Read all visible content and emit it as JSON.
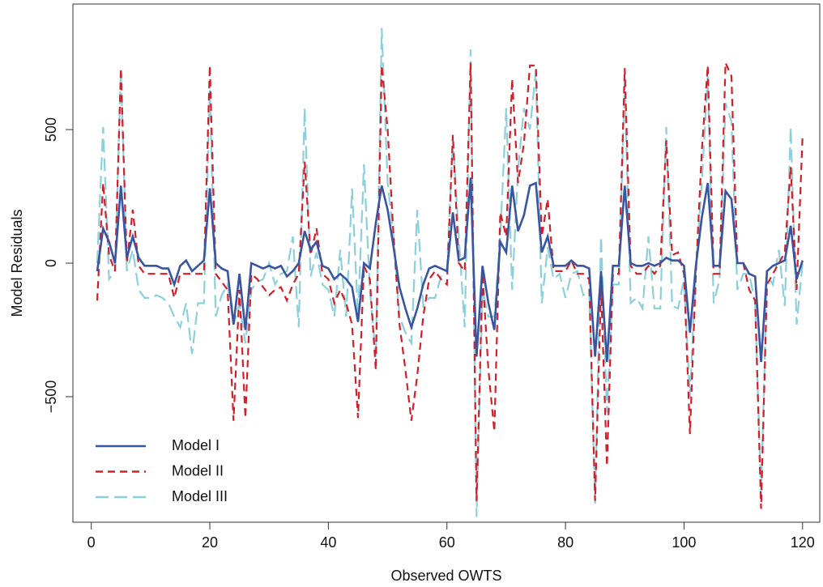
{
  "chart_data": {
    "type": "line",
    "xlabel": "Observed OWTS",
    "ylabel": "Model Residuals",
    "x": [
      1,
      2,
      3,
      4,
      5,
      6,
      7,
      8,
      9,
      10,
      11,
      12,
      13,
      14,
      15,
      16,
      17,
      18,
      19,
      20,
      21,
      22,
      23,
      24,
      25,
      26,
      27,
      28,
      29,
      30,
      31,
      32,
      33,
      34,
      35,
      36,
      37,
      38,
      39,
      40,
      41,
      42,
      43,
      44,
      45,
      46,
      47,
      48,
      49,
      50,
      51,
      52,
      53,
      54,
      55,
      56,
      57,
      58,
      59,
      60,
      61,
      62,
      63,
      64,
      65,
      66,
      67,
      68,
      69,
      70,
      71,
      72,
      73,
      74,
      75,
      76,
      77,
      78,
      79,
      80,
      81,
      82,
      83,
      84,
      85,
      86,
      87,
      88,
      89,
      90,
      91,
      92,
      93,
      94,
      95,
      96,
      97,
      98,
      99,
      100,
      101,
      102,
      103,
      104,
      105,
      106,
      107,
      108,
      109,
      110,
      111,
      112,
      113,
      114,
      115,
      116,
      117,
      118,
      119,
      120
    ],
    "series": [
      {
        "name": "Model I",
        "color": "#3a55a0",
        "dash": "solid",
        "values": [
          -30,
          130,
          80,
          0,
          290,
          20,
          100,
          20,
          -10,
          -10,
          -10,
          -20,
          -20,
          -80,
          -10,
          10,
          -30,
          -10,
          10,
          280,
          0,
          -20,
          -30,
          -230,
          -40,
          -250,
          0,
          -10,
          -20,
          -10,
          -20,
          -10,
          -50,
          -30,
          0,
          120,
          50,
          80,
          -10,
          -20,
          -60,
          -40,
          -60,
          -90,
          -220,
          0,
          -20,
          150,
          290,
          200,
          60,
          -90,
          -170,
          -240,
          -170,
          -80,
          -20,
          -10,
          -20,
          -30,
          190,
          10,
          20,
          320,
          -350,
          -10,
          -150,
          -250,
          80,
          40,
          290,
          120,
          180,
          290,
          300,
          40,
          100,
          -10,
          -10,
          -10,
          10,
          -10,
          -10,
          -20,
          -350,
          -30,
          -370,
          -10,
          -10,
          290,
          0,
          -10,
          -10,
          0,
          -10,
          0,
          20,
          10,
          10,
          -10,
          -260,
          -10,
          170,
          300,
          -10,
          -10,
          270,
          240,
          0,
          0,
          -40,
          -50,
          -370,
          -30,
          -10,
          0,
          10,
          140,
          -60,
          10
        ]
      },
      {
        "name": "Model II",
        "color": "#d0202a",
        "dash": "dashed",
        "values": [
          -140,
          300,
          30,
          -30,
          730,
          0,
          200,
          -10,
          -40,
          -40,
          -40,
          -40,
          -40,
          -130,
          -40,
          -40,
          -40,
          -40,
          -40,
          740,
          -40,
          -70,
          -100,
          -590,
          -100,
          -580,
          -40,
          -60,
          -90,
          -120,
          -100,
          -90,
          -140,
          -80,
          -40,
          380,
          30,
          130,
          -40,
          -60,
          -150,
          -100,
          -150,
          -230,
          -580,
          -10,
          -60,
          -400,
          740,
          500,
          100,
          -230,
          -400,
          -590,
          -420,
          -200,
          -60,
          -30,
          -60,
          -80,
          480,
          0,
          -30,
          750,
          -890,
          -40,
          -400,
          -630,
          190,
          100,
          690,
          300,
          450,
          740,
          740,
          100,
          240,
          -30,
          -30,
          -30,
          10,
          -40,
          -40,
          -60,
          -890,
          -90,
          -760,
          -40,
          -40,
          730,
          -10,
          -40,
          -40,
          -10,
          -40,
          -10,
          460,
          30,
          40,
          -40,
          -640,
          -40,
          420,
          740,
          -40,
          -40,
          750,
          700,
          0,
          0,
          -100,
          -140,
          -920,
          -80,
          -40,
          0,
          40,
          360,
          -100,
          480
        ]
      },
      {
        "name": "Model III",
        "color": "#8cd0dc",
        "dash": "longdash",
        "values": [
          0,
          510,
          -60,
          -30,
          720,
          -30,
          50,
          -100,
          -130,
          -130,
          -120,
          -130,
          -150,
          -200,
          -240,
          -150,
          -340,
          -150,
          -150,
          650,
          -200,
          -120,
          -80,
          -230,
          -150,
          -300,
          -100,
          -70,
          -60,
          0,
          -80,
          -40,
          -30,
          100,
          -240,
          580,
          -50,
          40,
          -80,
          -100,
          -200,
          50,
          -200,
          280,
          -200,
          370,
          -100,
          -350,
          880,
          300,
          100,
          -200,
          -260,
          -300,
          200,
          -160,
          -130,
          -130,
          -50,
          -30,
          470,
          100,
          -240,
          800,
          -950,
          -100,
          -200,
          -200,
          100,
          580,
          -100,
          350,
          580,
          500,
          720,
          -150,
          60,
          -60,
          -40,
          -130,
          -40,
          -30,
          -120,
          -100,
          -900,
          100,
          -560,
          -80,
          -80,
          680,
          -150,
          -130,
          -170,
          100,
          -170,
          -170,
          510,
          -160,
          -170,
          -60,
          -500,
          -30,
          300,
          700,
          -150,
          -60,
          600,
          530,
          -100,
          -40,
          -40,
          -150,
          -870,
          -40,
          -80,
          50,
          -160,
          510,
          -230,
          0
        ]
      }
    ],
    "xlim": [
      -3.1,
      122.9
    ],
    "ylim": [
      -970,
      970
    ],
    "xticks": [
      0,
      20,
      40,
      60,
      80,
      100,
      120
    ],
    "yticks": [
      {
        "value": -500,
        "label": "−500"
      },
      0,
      500
    ],
    "grid": false,
    "legend": "bottom-left"
  }
}
